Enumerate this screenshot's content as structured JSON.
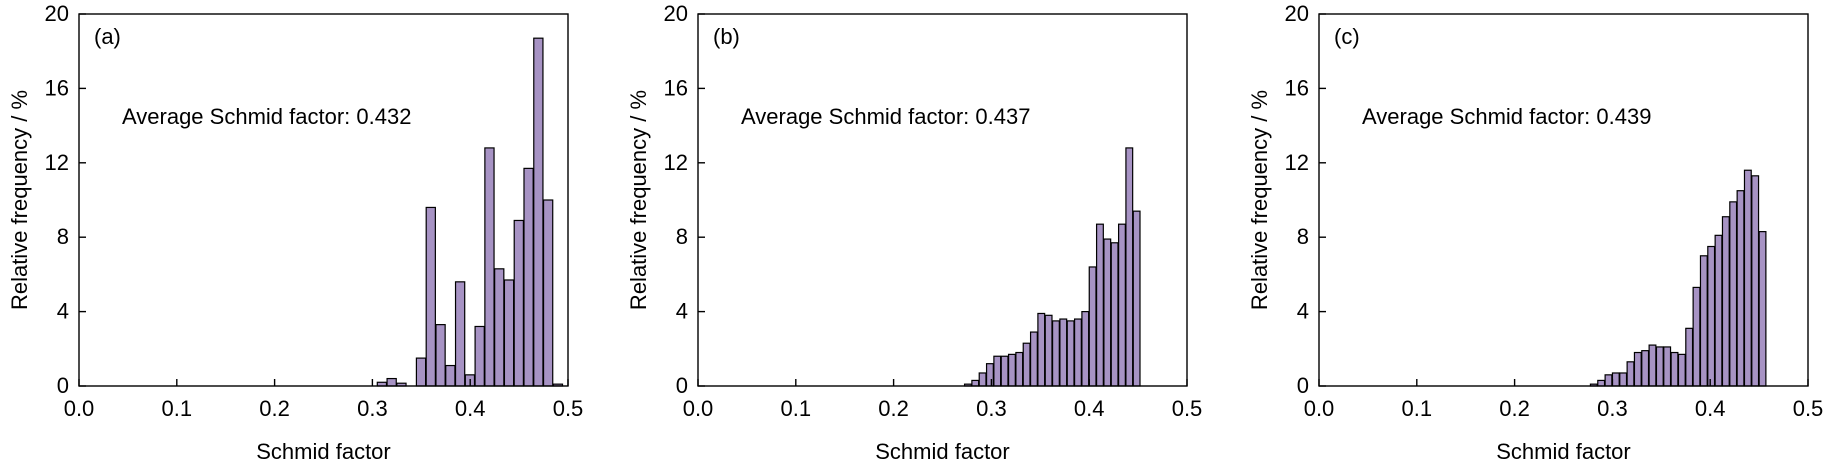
{
  "bar_fill": "#a793c4",
  "bar_stroke": "#000000",
  "chart_data": [
    {
      "type": "bar",
      "panel_label": "(a)",
      "annotation": "Average Schmid factor: 0.432",
      "xlabel": "Schmid factor",
      "ylabel": "Relative frequency / %",
      "xlim": [
        0,
        0.5
      ],
      "ylim": [
        0,
        20
      ],
      "x_ticks": [
        "0.0",
        "0.1",
        "0.2",
        "0.3",
        "0.4",
        "0.5"
      ],
      "y_ticks": [
        "0",
        "4",
        "8",
        "12",
        "16",
        "20"
      ],
      "bin_width": 0.01,
      "x": [
        0.31,
        0.32,
        0.33,
        0.35,
        0.36,
        0.37,
        0.38,
        0.39,
        0.4,
        0.41,
        0.42,
        0.43,
        0.44,
        0.45,
        0.46,
        0.47,
        0.48,
        0.49
      ],
      "values": [
        0.2,
        0.4,
        0.15,
        1.5,
        9.6,
        3.3,
        1.1,
        5.6,
        0.6,
        3.2,
        12.8,
        6.3,
        5.7,
        8.9,
        11.7,
        18.7,
        10.0,
        0.1
      ]
    },
    {
      "type": "bar",
      "panel_label": "(b)",
      "annotation": "Average Schmid factor: 0.437",
      "xlabel": "Schmid factor",
      "ylabel": "Relative frequency / %",
      "xlim": [
        0,
        0.5
      ],
      "ylim": [
        0,
        20
      ],
      "x_ticks": [
        "0.0",
        "0.1",
        "0.2",
        "0.3",
        "0.4",
        "0.5"
      ],
      "y_ticks": [
        "0",
        "4",
        "8",
        "12",
        "16",
        "20"
      ],
      "bin_width": 0.0075,
      "x": [
        0.2763,
        0.2838,
        0.2913,
        0.2988,
        0.3063,
        0.3138,
        0.3213,
        0.3288,
        0.3363,
        0.3438,
        0.3513,
        0.3588,
        0.3663,
        0.3738,
        0.3813,
        0.3888,
        0.3963,
        0.4038,
        0.4113,
        0.4188,
        0.4263,
        0.4338,
        0.4413,
        0.4488,
        0.4563,
        0.4638,
        0.4713,
        0.4788,
        0.4863,
        0.4938
      ],
      "values": [
        0.1,
        0.3,
        0.7,
        1.2,
        1.6,
        1.6,
        1.7,
        1.8,
        2.3,
        2.9,
        3.9,
        3.8,
        3.5,
        3.6,
        3.5,
        3.6,
        4.0,
        6.4,
        8.7,
        7.9,
        7.7,
        8.7,
        12.8,
        9.4,
        0,
        0,
        0,
        0,
        0,
        0
      ]
    },
    {
      "type": "bar",
      "panel_label": "(c)",
      "annotation": "Average Schmid factor: 0.439",
      "xlabel": "Schmid factor",
      "ylabel": "Relative frequency / %",
      "xlim": [
        0,
        0.5
      ],
      "ylim": [
        0,
        20
      ],
      "x_ticks": [
        "0.0",
        "0.1",
        "0.2",
        "0.3",
        "0.4",
        "0.5"
      ],
      "y_ticks": [
        "0",
        "4",
        "8",
        "12",
        "16",
        "20"
      ],
      "bin_width": 0.0075,
      "x": [
        0.2813,
        0.2888,
        0.2963,
        0.3038,
        0.3113,
        0.3188,
        0.3263,
        0.3338,
        0.3413,
        0.3488,
        0.3563,
        0.3638,
        0.3713,
        0.3788,
        0.3863,
        0.3938,
        0.4013,
        0.4088,
        0.4163,
        0.4238,
        0.4313,
        0.4388,
        0.4463,
        0.4538,
        0.4613,
        0.4688,
        0.4763,
        0.4838,
        0.4913
      ],
      "values": [
        0.1,
        0.3,
        0.6,
        0.7,
        0.7,
        1.3,
        1.8,
        1.9,
        2.2,
        2.1,
        2.1,
        1.8,
        1.7,
        3.1,
        5.3,
        7.0,
        7.5,
        8.1,
        9.1,
        9.9,
        10.5,
        11.6,
        11.3,
        8.3,
        0,
        0,
        0,
        0,
        0
      ]
    }
  ]
}
